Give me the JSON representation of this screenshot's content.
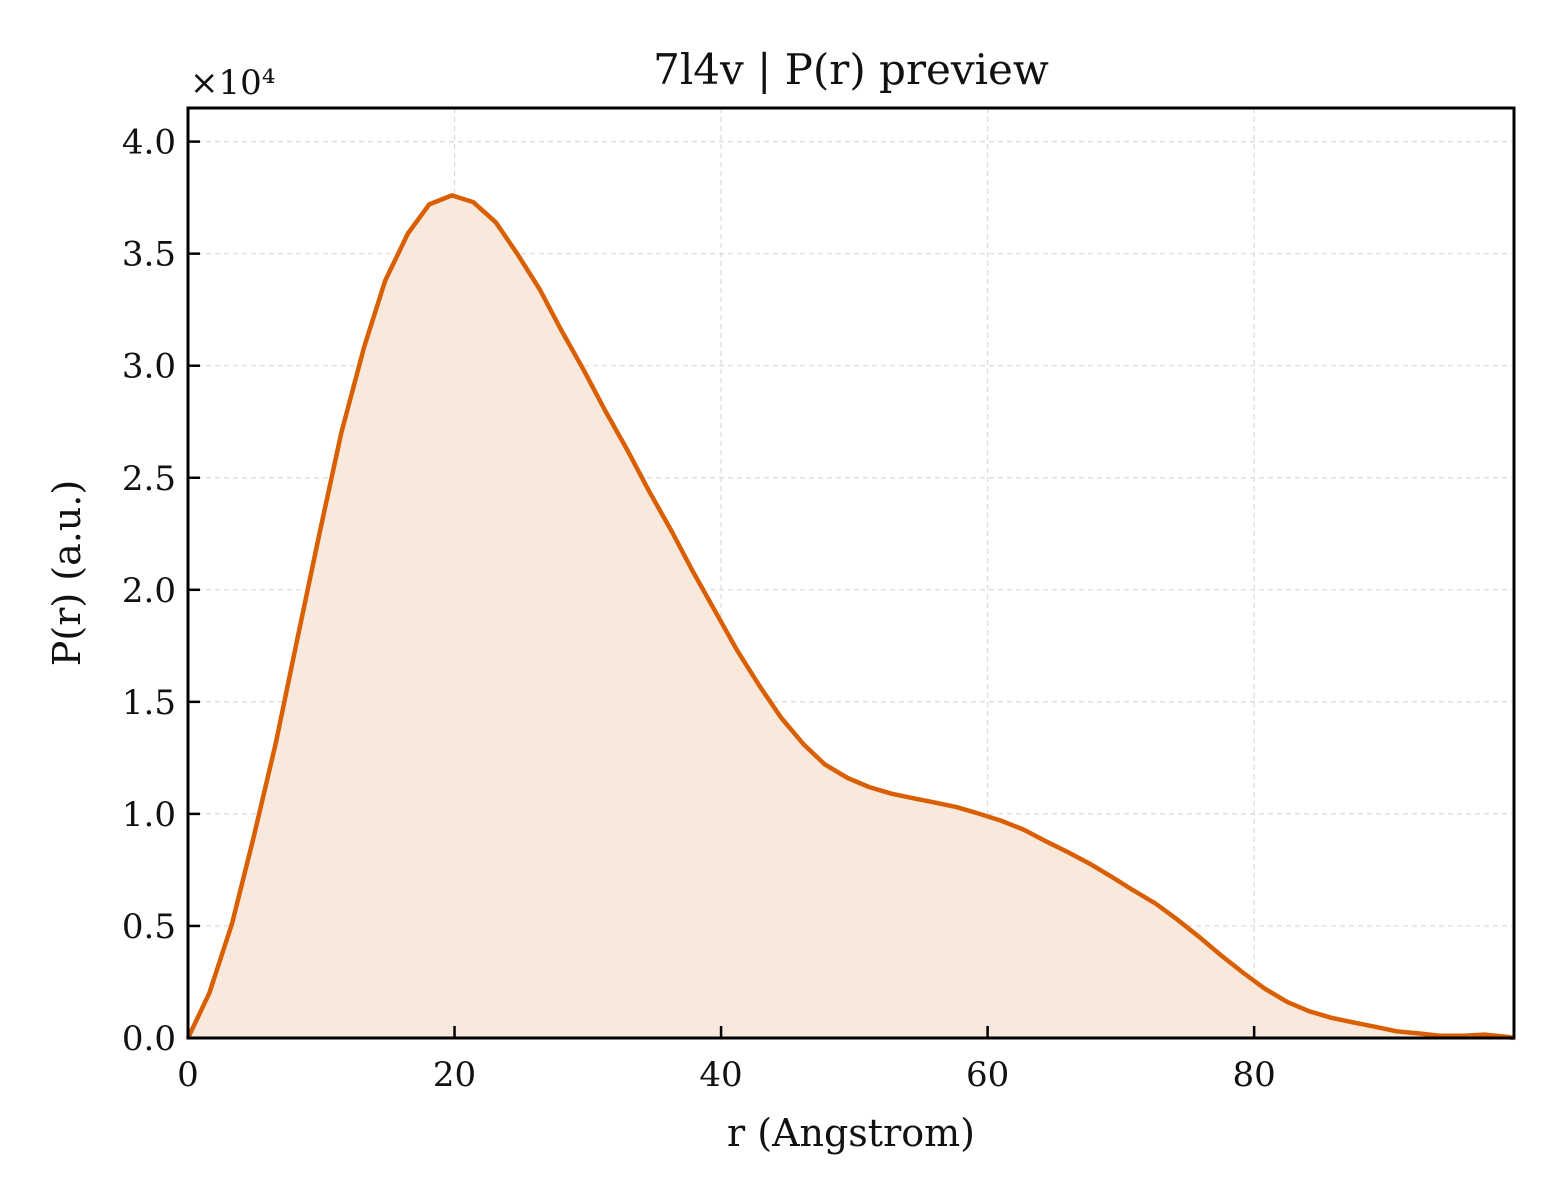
{
  "chart_data": {
    "type": "area",
    "title": "7l4v | P(r) preview",
    "xlabel": "r (Angstrom)",
    "ylabel": "P(r) (a.u.)",
    "y_multiplier_label": "×10⁴",
    "xlim": [
      0,
      99.5
    ],
    "ylim": [
      0,
      41500
    ],
    "x_ticks": [
      0,
      20,
      40,
      60,
      80
    ],
    "x_tick_labels": [
      "0",
      "20",
      "40",
      "60",
      "80"
    ],
    "y_ticks": [
      0,
      5000,
      10000,
      15000,
      20000,
      25000,
      30000,
      35000,
      40000
    ],
    "y_tick_labels": [
      "0.0",
      "0.5",
      "1.0",
      "1.5",
      "2.0",
      "2.5",
      "3.0",
      "3.5",
      "4.0"
    ],
    "grid": true,
    "line_color": "#d95f02",
    "fill_color": "#f9e9dd",
    "series": [
      {
        "x": [
          0,
          1.6,
          3.3,
          4.9,
          6.6,
          8.2,
          9.9,
          11.5,
          13.2,
          14.8,
          16.5,
          18.1,
          19.8,
          21.4,
          23.1,
          24.7,
          26.4,
          28.0,
          29.7,
          31.3,
          33.0,
          34.6,
          36.3,
          37.9,
          39.6,
          41.2,
          42.9,
          44.5,
          46.2,
          47.8,
          49.5,
          51.1,
          52.8,
          54.4,
          56.1,
          57.7,
          59.4,
          61.0,
          62.7,
          64.3,
          66.0,
          67.6,
          69.3,
          70.9,
          72.6,
          74.2,
          75.9,
          77.5,
          79.2,
          80.8,
          82.5,
          84.1,
          85.8,
          87.4,
          89.1,
          90.7,
          92.4,
          94.0,
          95.7,
          97.3,
          99.0,
          99.5
        ],
        "y": [
          0,
          2000,
          5100,
          8900,
          13200,
          17800,
          22600,
          27000,
          30800,
          33800,
          35900,
          37200,
          37600,
          37300,
          36400,
          35000,
          33400,
          31600,
          29800,
          28000,
          26200,
          24400,
          22600,
          20800,
          19000,
          17300,
          15700,
          14300,
          13100,
          12200,
          11600,
          11200,
          10900,
          10700,
          10500,
          10300,
          10000,
          9700,
          9300,
          8800,
          8300,
          7800,
          7200,
          6600,
          6000,
          5300,
          4500,
          3700,
          2900,
          2200,
          1600,
          1200,
          900,
          700,
          500,
          300,
          200,
          100,
          100,
          150,
          50,
          0
        ]
      }
    ]
  }
}
